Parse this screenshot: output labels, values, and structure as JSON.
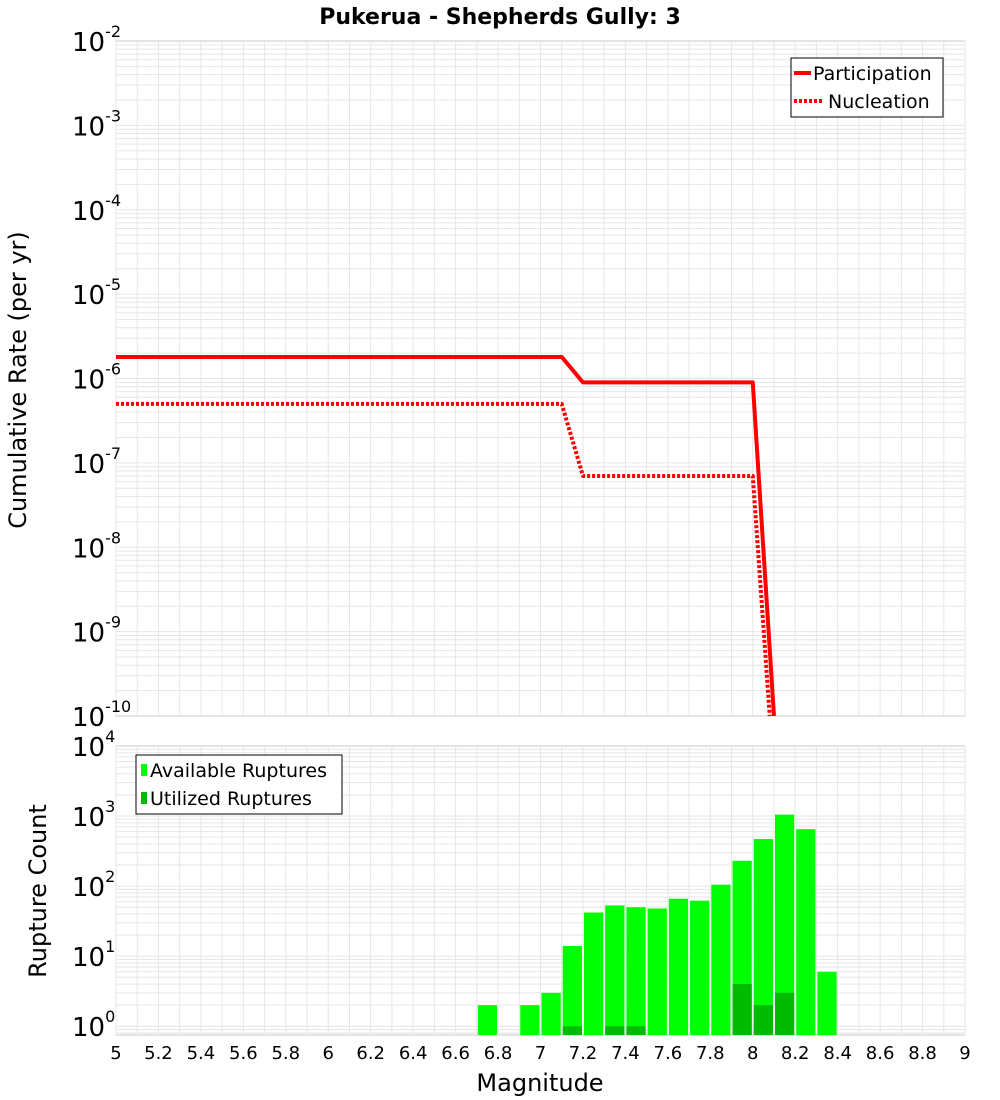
{
  "title": "Pukerua - Shepherds Gully: 3",
  "colors": {
    "participation": "#ff0000",
    "nucleation": "#ff0000",
    "available": "#00ff00",
    "utilized": "#00bb00",
    "grid": "#e6e6e6",
    "frame": "#c8c8c8"
  },
  "chart_data": [
    {
      "type": "line",
      "title": "Pukerua - Shepherds Gully: 3",
      "ylabel": "Cumulative Rate (per yr)",
      "yscale": "log",
      "xlim": [
        5,
        9
      ],
      "ylim": [
        1e-10,
        0.01
      ],
      "y_ticks": [
        {
          "base": "10",
          "exp": "-2"
        },
        {
          "base": "10",
          "exp": "-3"
        },
        {
          "base": "10",
          "exp": "-4"
        },
        {
          "base": "10",
          "exp": "-5"
        },
        {
          "base": "10",
          "exp": "-6"
        },
        {
          "base": "10",
          "exp": "-7"
        },
        {
          "base": "10",
          "exp": "-8"
        },
        {
          "base": "10",
          "exp": "-9"
        },
        {
          "base": "10",
          "exp": "-10"
        }
      ],
      "legend_position": "top-right",
      "grid": true,
      "series": [
        {
          "name": "Participation",
          "style": "solid",
          "x": [
            5.0,
            7.1,
            7.2,
            8.0,
            8.1
          ],
          "y": [
            1.8e-06,
            1.8e-06,
            9e-07,
            9e-07,
            1e-10
          ]
        },
        {
          "name": "Nucleation",
          "style": "dotted",
          "x": [
            5.0,
            7.1,
            7.2,
            8.0,
            8.08
          ],
          "y": [
            5e-07,
            5e-07,
            7e-08,
            7e-08,
            1e-10
          ]
        }
      ]
    },
    {
      "type": "bar",
      "ylabel": "Rupture Count",
      "xlabel": "Magnitude",
      "yscale": "log",
      "xlim": [
        5,
        9
      ],
      "ylim": [
        0.75,
        10000
      ],
      "x_ticks": [
        "5",
        "5.2",
        "5.4",
        "5.6",
        "5.8",
        "6",
        "6.2",
        "6.4",
        "6.6",
        "6.8",
        "7",
        "7.2",
        "7.4",
        "7.6",
        "7.8",
        "8",
        "8.2",
        "8.4",
        "8.6",
        "8.8",
        "9"
      ],
      "y_ticks": [
        {
          "base": "10",
          "exp": "4"
        },
        {
          "base": "10",
          "exp": "3"
        },
        {
          "base": "10",
          "exp": "2"
        },
        {
          "base": "10",
          "exp": "1"
        },
        {
          "base": "10",
          "exp": "0"
        }
      ],
      "legend_position": "top-left",
      "grid": true,
      "bin_width": 0.1,
      "series": [
        {
          "name": "Available Ruptures",
          "x": [
            6.7,
            6.9,
            7.0,
            7.1,
            7.2,
            7.3,
            7.4,
            7.5,
            7.6,
            7.7,
            7.8,
            7.9,
            8.0,
            8.1,
            8.2,
            8.3
          ],
          "values": [
            2,
            2,
            3,
            14,
            42,
            53,
            50,
            48,
            66,
            62,
            105,
            230,
            470,
            1050,
            650,
            6
          ]
        },
        {
          "name": "Utilized Ruptures",
          "x": [
            7.1,
            7.3,
            7.4,
            7.9,
            8.0,
            8.1
          ],
          "values": [
            1,
            1,
            1,
            4,
            2,
            3
          ]
        }
      ]
    }
  ]
}
